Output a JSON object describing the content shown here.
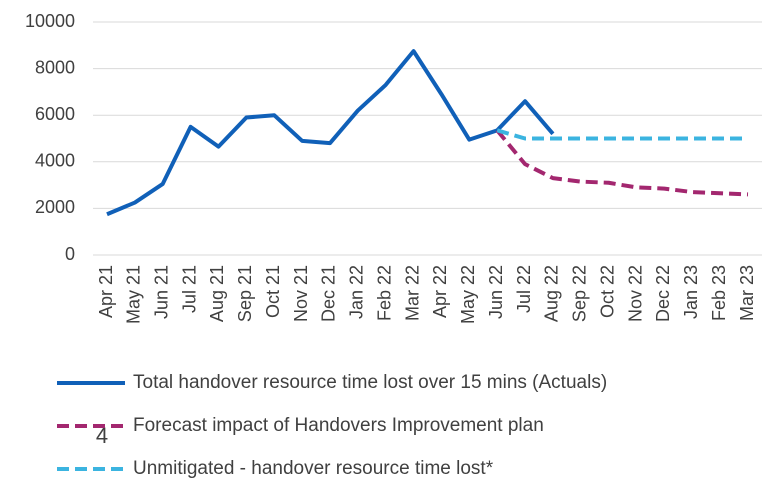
{
  "chart_data": {
    "type": "line",
    "categories": [
      "Apr 21",
      "May 21",
      "Jun 21",
      "Jul 21",
      "Aug 21",
      "Sep 21",
      "Oct 21",
      "Nov 21",
      "Dec 21",
      "Jan 22",
      "Feb 22",
      "Mar 22",
      "Apr 22",
      "May 22",
      "Jun 22",
      "Jul 22",
      "Aug 22",
      "Sep 22",
      "Oct 22",
      "Nov 22",
      "Dec 22",
      "Jan 23",
      "Feb 23",
      "Mar 23"
    ],
    "series": [
      {
        "name": "Total handover resource time lost over 15 mins (Actuals)",
        "color": "#1060b8",
        "dash": false,
        "values": [
          1750,
          2250,
          3050,
          5500,
          4650,
          5900,
          6000,
          4900,
          4800,
          6200,
          7300,
          8750,
          6900,
          4950,
          5350,
          6600,
          5200,
          null,
          null,
          null,
          null,
          null,
          null,
          null
        ]
      },
      {
        "name": "Forecast impact of Handovers Improvement plan",
        "color": "#a3276f",
        "dash": true,
        "values": [
          null,
          null,
          null,
          null,
          null,
          null,
          null,
          null,
          null,
          null,
          null,
          null,
          null,
          null,
          5350,
          3900,
          3300,
          3150,
          3100,
          2900,
          2850,
          2700,
          2650,
          2600
        ]
      },
      {
        "name": "Unmitigated - handover resource time lost*",
        "color": "#3bb4e0",
        "dash": true,
        "values": [
          null,
          null,
          null,
          null,
          null,
          null,
          null,
          null,
          null,
          null,
          null,
          null,
          null,
          null,
          5350,
          5000,
          5000,
          5000,
          5000,
          5000,
          5000,
          5000,
          5000,
          5000
        ]
      }
    ],
    "ylim": [
      0,
      10000
    ],
    "yticks": [
      0,
      2000,
      4000,
      6000,
      8000,
      10000
    ],
    "grid": true,
    "annotations": [
      "4"
    ]
  }
}
